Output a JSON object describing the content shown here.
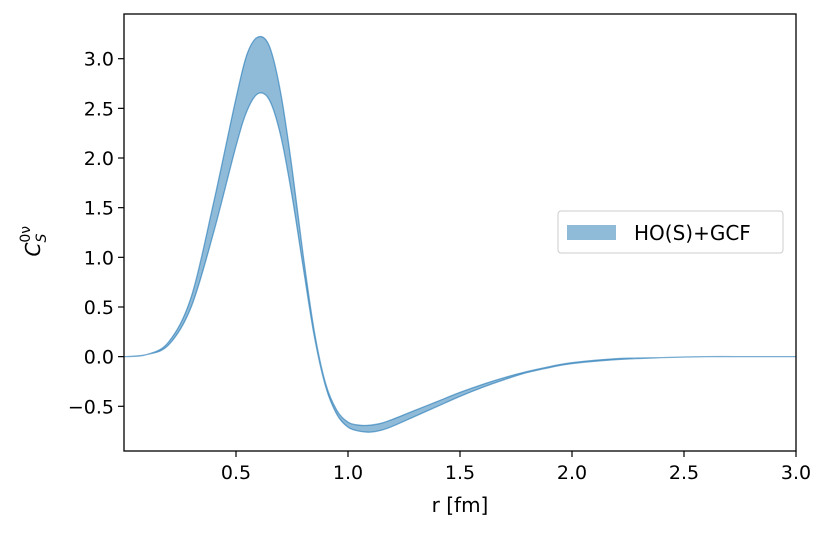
{
  "chart_data": {
    "type": "area",
    "xlabel": "r [fm]",
    "ylabel": "C_S^{0ν}",
    "ylabel_parts": {
      "base": "C",
      "sub": "S",
      "sup": "0ν"
    },
    "xlim": [
      0.0,
      3.0
    ],
    "ylim": [
      -0.95,
      3.45
    ],
    "x_ticks": [
      0.5,
      1.0,
      1.5,
      2.0,
      2.5,
      3.0
    ],
    "x_tick_labels": [
      "0.5",
      "1.0",
      "1.5",
      "2.0",
      "2.5",
      "3.0"
    ],
    "y_ticks": [
      -0.5,
      0.0,
      0.5,
      1.0,
      1.5,
      2.0,
      2.5,
      3.0
    ],
    "y_tick_labels": [
      "−0.5",
      "0.0",
      "0.5",
      "1.0",
      "1.5",
      "2.0",
      "2.5",
      "3.0"
    ],
    "grid": false,
    "legend_position": "center-right",
    "series": [
      {
        "name": "HO(S)+GCF",
        "color": "#1f77b4",
        "x": [
          0.0,
          0.1,
          0.2,
          0.3,
          0.4,
          0.5,
          0.55,
          0.6,
          0.65,
          0.7,
          0.75,
          0.8,
          0.85,
          0.9,
          0.95,
          1.0,
          1.05,
          1.1,
          1.15,
          1.2,
          1.3,
          1.4,
          1.5,
          1.6,
          1.7,
          1.8,
          1.9,
          2.0,
          2.2,
          2.4,
          2.6,
          2.8,
          3.0
        ],
        "lower": [
          0.0,
          0.02,
          0.12,
          0.5,
          1.25,
          2.12,
          2.48,
          2.65,
          2.58,
          2.22,
          1.62,
          0.9,
          0.2,
          -0.3,
          -0.58,
          -0.71,
          -0.75,
          -0.76,
          -0.74,
          -0.7,
          -0.6,
          -0.5,
          -0.4,
          -0.31,
          -0.23,
          -0.16,
          -0.11,
          -0.07,
          -0.03,
          -0.01,
          0.0,
          0.0,
          0.0
        ],
        "upper": [
          0.0,
          0.02,
          0.15,
          0.6,
          1.55,
          2.6,
          3.05,
          3.22,
          3.12,
          2.65,
          1.9,
          1.02,
          0.25,
          -0.27,
          -0.54,
          -0.66,
          -0.69,
          -0.69,
          -0.67,
          -0.63,
          -0.54,
          -0.45,
          -0.36,
          -0.28,
          -0.21,
          -0.15,
          -0.1,
          -0.06,
          -0.02,
          -0.01,
          0.0,
          0.0,
          0.0
        ]
      }
    ]
  }
}
